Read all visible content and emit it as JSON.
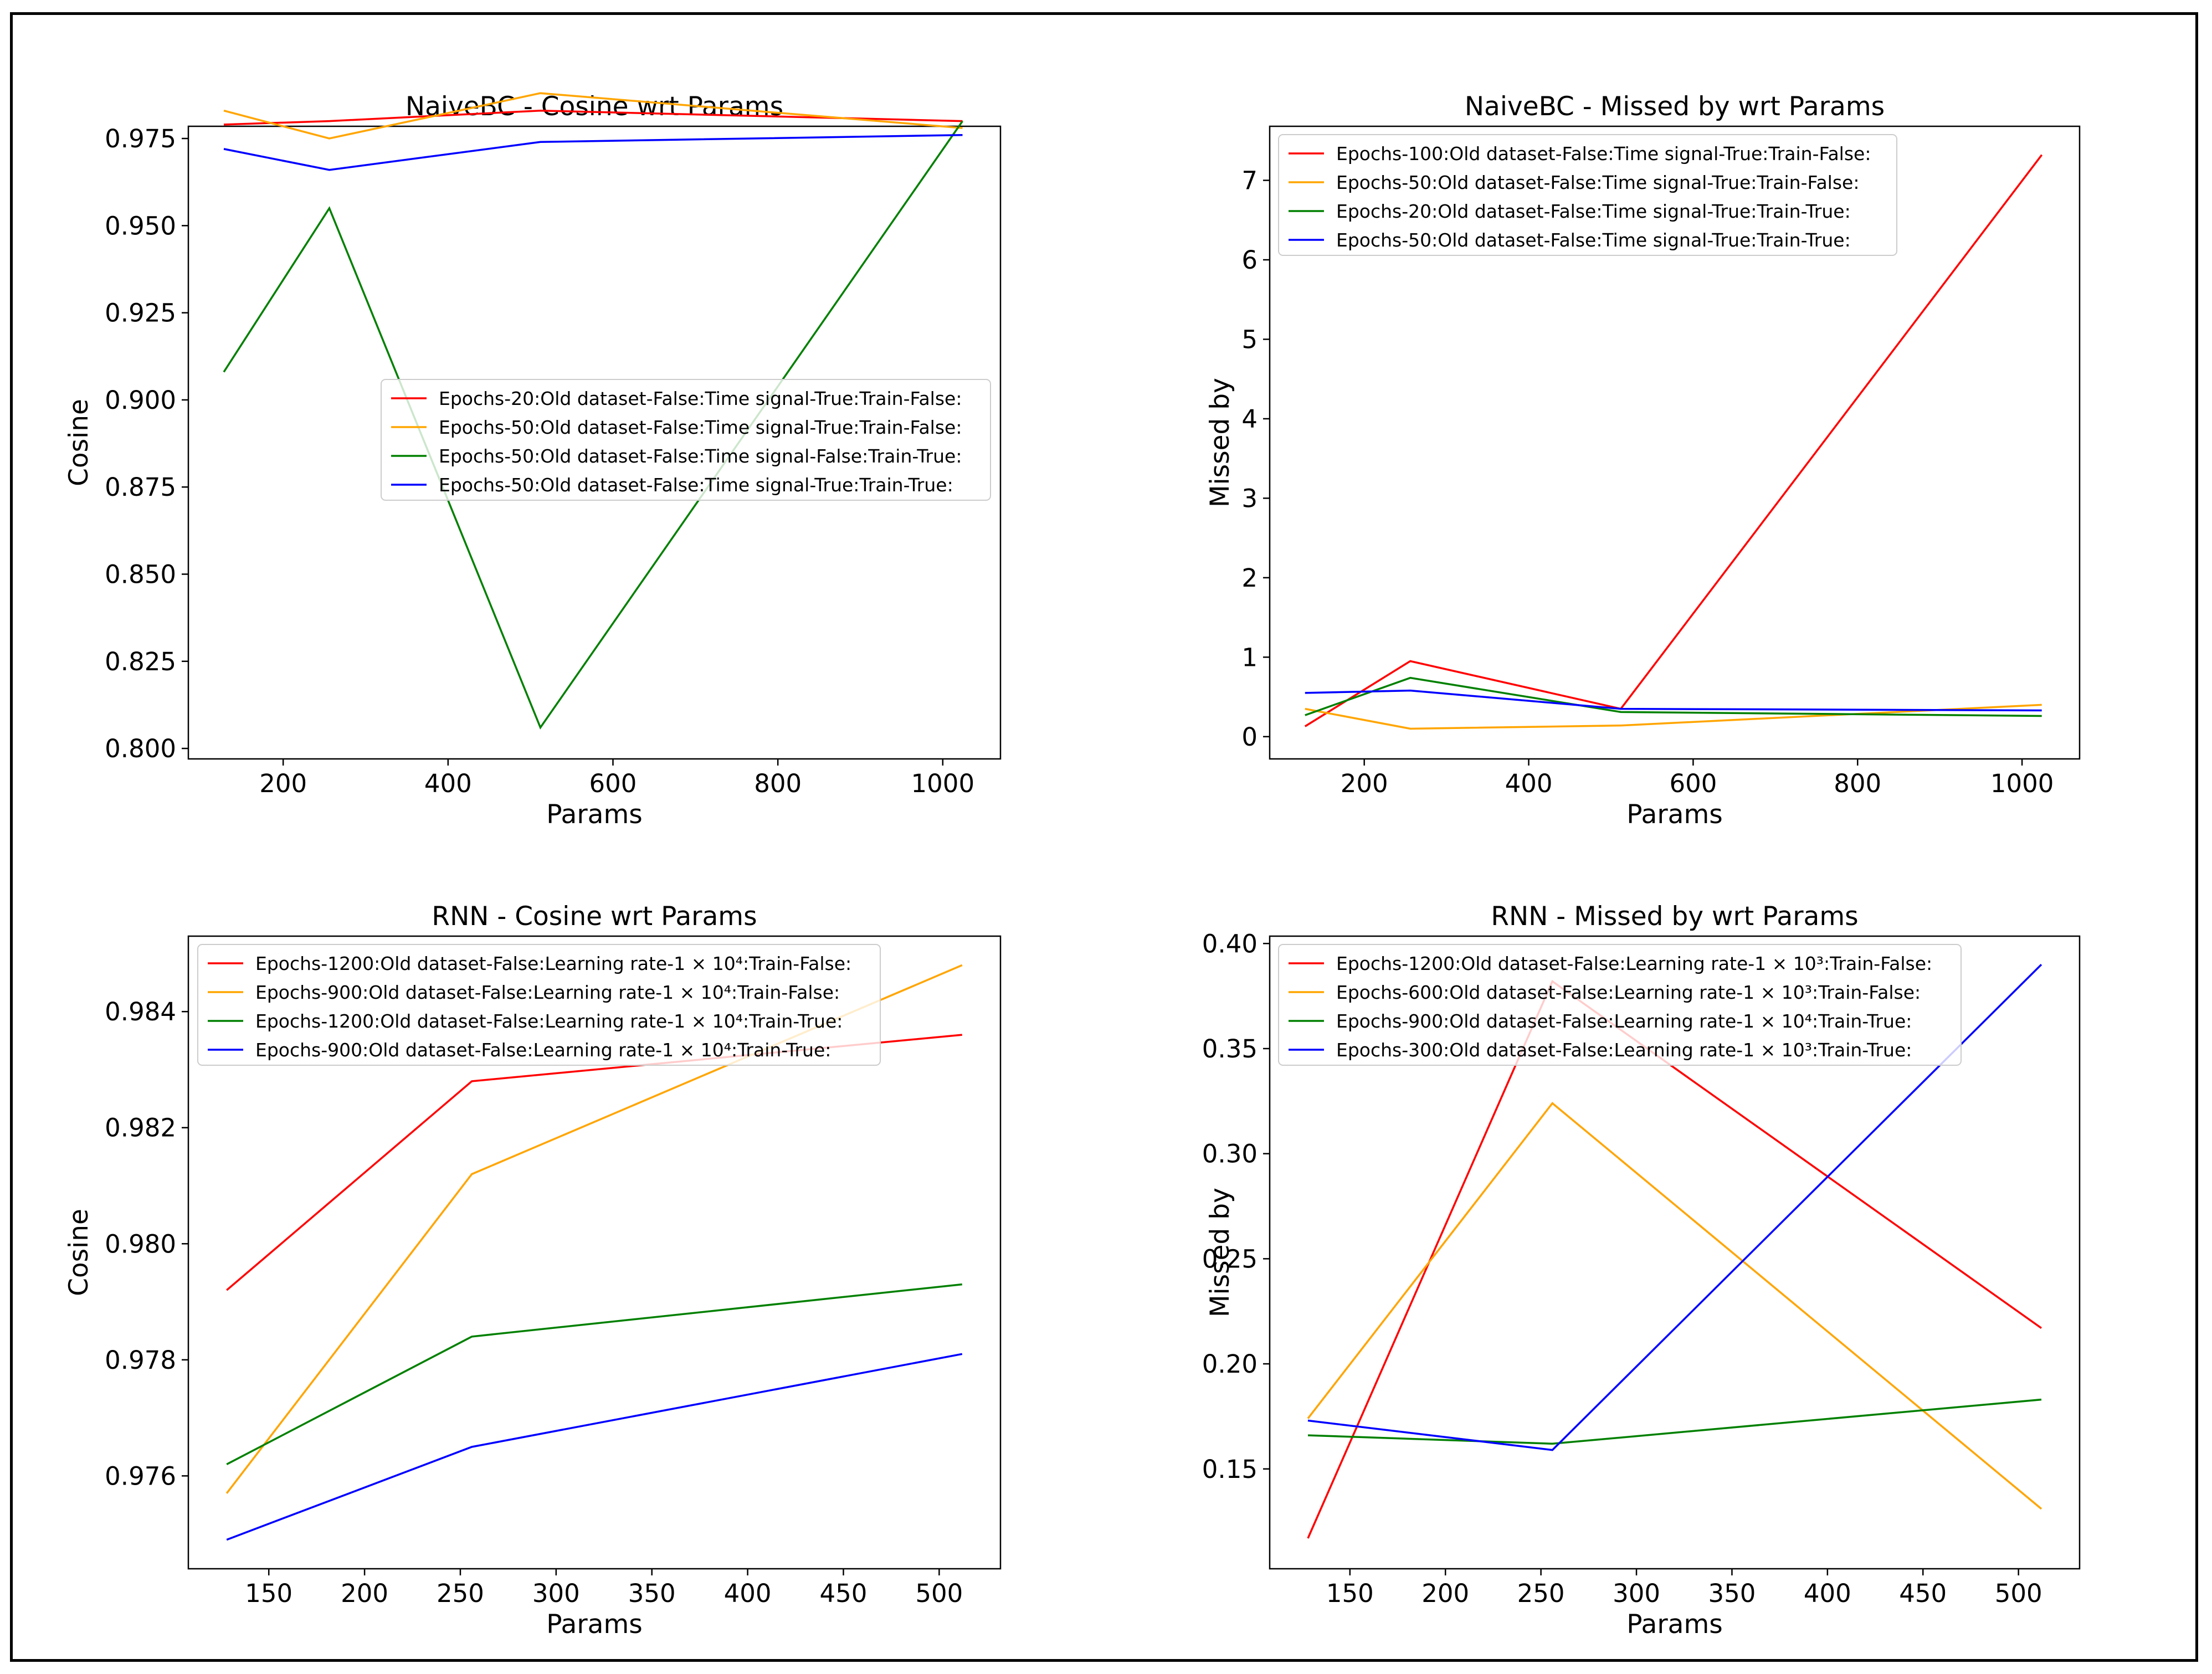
{
  "chart_data": [
    {
      "type": "line",
      "title": "NaiveBC - Cosine wrt Params",
      "xlabel": "Params",
      "ylabel": "Cosine",
      "xlim": [
        85,
        1070
      ],
      "ylim": [
        0.797,
        0.9785
      ],
      "xticks": [
        200,
        400,
        600,
        800,
        1000
      ],
      "xtick_labels": [
        "200",
        "400",
        "600",
        "800",
        "1000"
      ],
      "yticks": [
        0.8,
        0.825,
        0.85,
        0.875,
        0.9,
        0.925,
        0.95,
        0.975
      ],
      "ytick_labels": [
        "0.800",
        "0.825",
        "0.850",
        "0.875",
        "0.900",
        "0.925",
        "0.950",
        "0.975"
      ],
      "legend_location": "center-right",
      "x": [
        128,
        256,
        512,
        1024
      ],
      "series": [
        {
          "name": "Epochs-20:Old dataset-False:Time signal-True:Train-False:",
          "color": "#ff0000",
          "values": [
            0.979,
            0.98,
            0.983,
            0.98
          ]
        },
        {
          "name": "Epochs-50:Old dataset-False:Time signal-True:Train-False:",
          "color": "#ffa500",
          "values": [
            0.983,
            0.975,
            0.988,
            0.978
          ]
        },
        {
          "name": "Epochs-50:Old dataset-False:Time signal-False:Train-True:",
          "color": "#008000",
          "values": [
            0.908,
            0.955,
            0.806,
            0.98
          ]
        },
        {
          "name": "Epochs-50:Old dataset-False:Time signal-True:Train-True:",
          "color": "#0000ff",
          "values": [
            0.972,
            0.966,
            0.974,
            0.976
          ]
        }
      ]
    },
    {
      "type": "line",
      "title": "NaiveBC - Missed by wrt Params",
      "xlabel": "Params",
      "ylabel": "Missed by",
      "xlim": [
        85,
        1070
      ],
      "ylim": [
        -0.28,
        7.68
      ],
      "xticks": [
        200,
        400,
        600,
        800,
        1000
      ],
      "xtick_labels": [
        "200",
        "400",
        "600",
        "800",
        "1000"
      ],
      "yticks": [
        0,
        1,
        2,
        3,
        4,
        5,
        6,
        7
      ],
      "ytick_labels": [
        "0",
        "1",
        "2",
        "3",
        "4",
        "5",
        "6",
        "7"
      ],
      "legend_location": "top-left",
      "x": [
        128,
        256,
        512,
        1024
      ],
      "series": [
        {
          "name": "Epochs-100:Old dataset-False:Time signal-True:Train-False:",
          "color": "#ff0000",
          "values": [
            0.13,
            0.95,
            0.35,
            7.32
          ]
        },
        {
          "name": "Epochs-50:Old dataset-False:Time signal-True:Train-False:",
          "color": "#ffa500",
          "values": [
            0.35,
            0.1,
            0.14,
            0.4
          ]
        },
        {
          "name": "Epochs-20:Old dataset-False:Time signal-True:Train-True:",
          "color": "#008000",
          "values": [
            0.27,
            0.74,
            0.31,
            0.26
          ]
        },
        {
          "name": "Epochs-50:Old dataset-False:Time signal-True:Train-True:",
          "color": "#0000ff",
          "values": [
            0.55,
            0.58,
            0.35,
            0.33
          ]
        }
      ]
    },
    {
      "type": "line",
      "title": "RNN - Cosine wrt Params",
      "xlabel": "Params",
      "ylabel": "Cosine",
      "xlim": [
        108,
        532
      ],
      "ylim": [
        0.9744,
        0.9853
      ],
      "xticks": [
        150,
        200,
        250,
        300,
        350,
        400,
        450,
        500
      ],
      "xtick_labels": [
        "150",
        "200",
        "250",
        "300",
        "350",
        "400",
        "450",
        "500"
      ],
      "yticks": [
        0.976,
        0.978,
        0.98,
        0.982,
        0.984
      ],
      "ytick_labels": [
        "0.976",
        "0.978",
        "0.980",
        "0.982",
        "0.984"
      ],
      "legend_location": "top-left",
      "x": [
        128,
        256,
        512
      ],
      "series": [
        {
          "name": "Epochs-1200:Old dataset-False:Learning rate-1 × 10⁴:Train-False:",
          "color": "#ff0000",
          "values": [
            0.9792,
            0.9828,
            0.9836
          ]
        },
        {
          "name": "Epochs-900:Old dataset-False:Learning rate-1 × 10⁴:Train-False:",
          "color": "#ffa500",
          "values": [
            0.9757,
            0.9812,
            0.9848
          ]
        },
        {
          "name": "Epochs-1200:Old dataset-False:Learning rate-1 × 10⁴:Train-True:",
          "color": "#008000",
          "values": [
            0.9762,
            0.9784,
            0.9793
          ]
        },
        {
          "name": "Epochs-900:Old dataset-False:Learning rate-1 × 10⁴:Train-True:",
          "color": "#0000ff",
          "values": [
            0.9749,
            0.9765,
            0.9781
          ]
        }
      ]
    },
    {
      "type": "line",
      "title": "RNN - Missed by wrt Params",
      "xlabel": "Params",
      "ylabel": "Missed by",
      "xlim": [
        108,
        532
      ],
      "ylim": [
        0.1025,
        0.4035
      ],
      "xticks": [
        150,
        200,
        250,
        300,
        350,
        400,
        450,
        500
      ],
      "xtick_labels": [
        "150",
        "200",
        "250",
        "300",
        "350",
        "400",
        "450",
        "500"
      ],
      "yticks": [
        0.15,
        0.2,
        0.25,
        0.3,
        0.35,
        0.4
      ],
      "ytick_labels": [
        "0.15",
        "0.20",
        "0.25",
        "0.30",
        "0.35",
        "0.40"
      ],
      "legend_location": "top-left",
      "x": [
        128,
        256,
        512
      ],
      "series": [
        {
          "name": "Epochs-1200:Old dataset-False:Learning rate-1 × 10³:Train-False:",
          "color": "#ff0000",
          "values": [
            0.117,
            0.382,
            0.217
          ]
        },
        {
          "name": "Epochs-600:Old dataset-False:Learning rate-1 × 10³:Train-False:",
          "color": "#ffa500",
          "values": [
            0.174,
            0.324,
            0.131
          ]
        },
        {
          "name": "Epochs-900:Old dataset-False:Learning rate-1 × 10⁴:Train-True:",
          "color": "#008000",
          "values": [
            0.166,
            0.162,
            0.183
          ]
        },
        {
          "name": "Epochs-300:Old dataset-False:Learning rate-1 × 10³:Train-True:",
          "color": "#0000ff",
          "values": [
            0.173,
            0.159,
            0.39
          ]
        }
      ]
    }
  ]
}
